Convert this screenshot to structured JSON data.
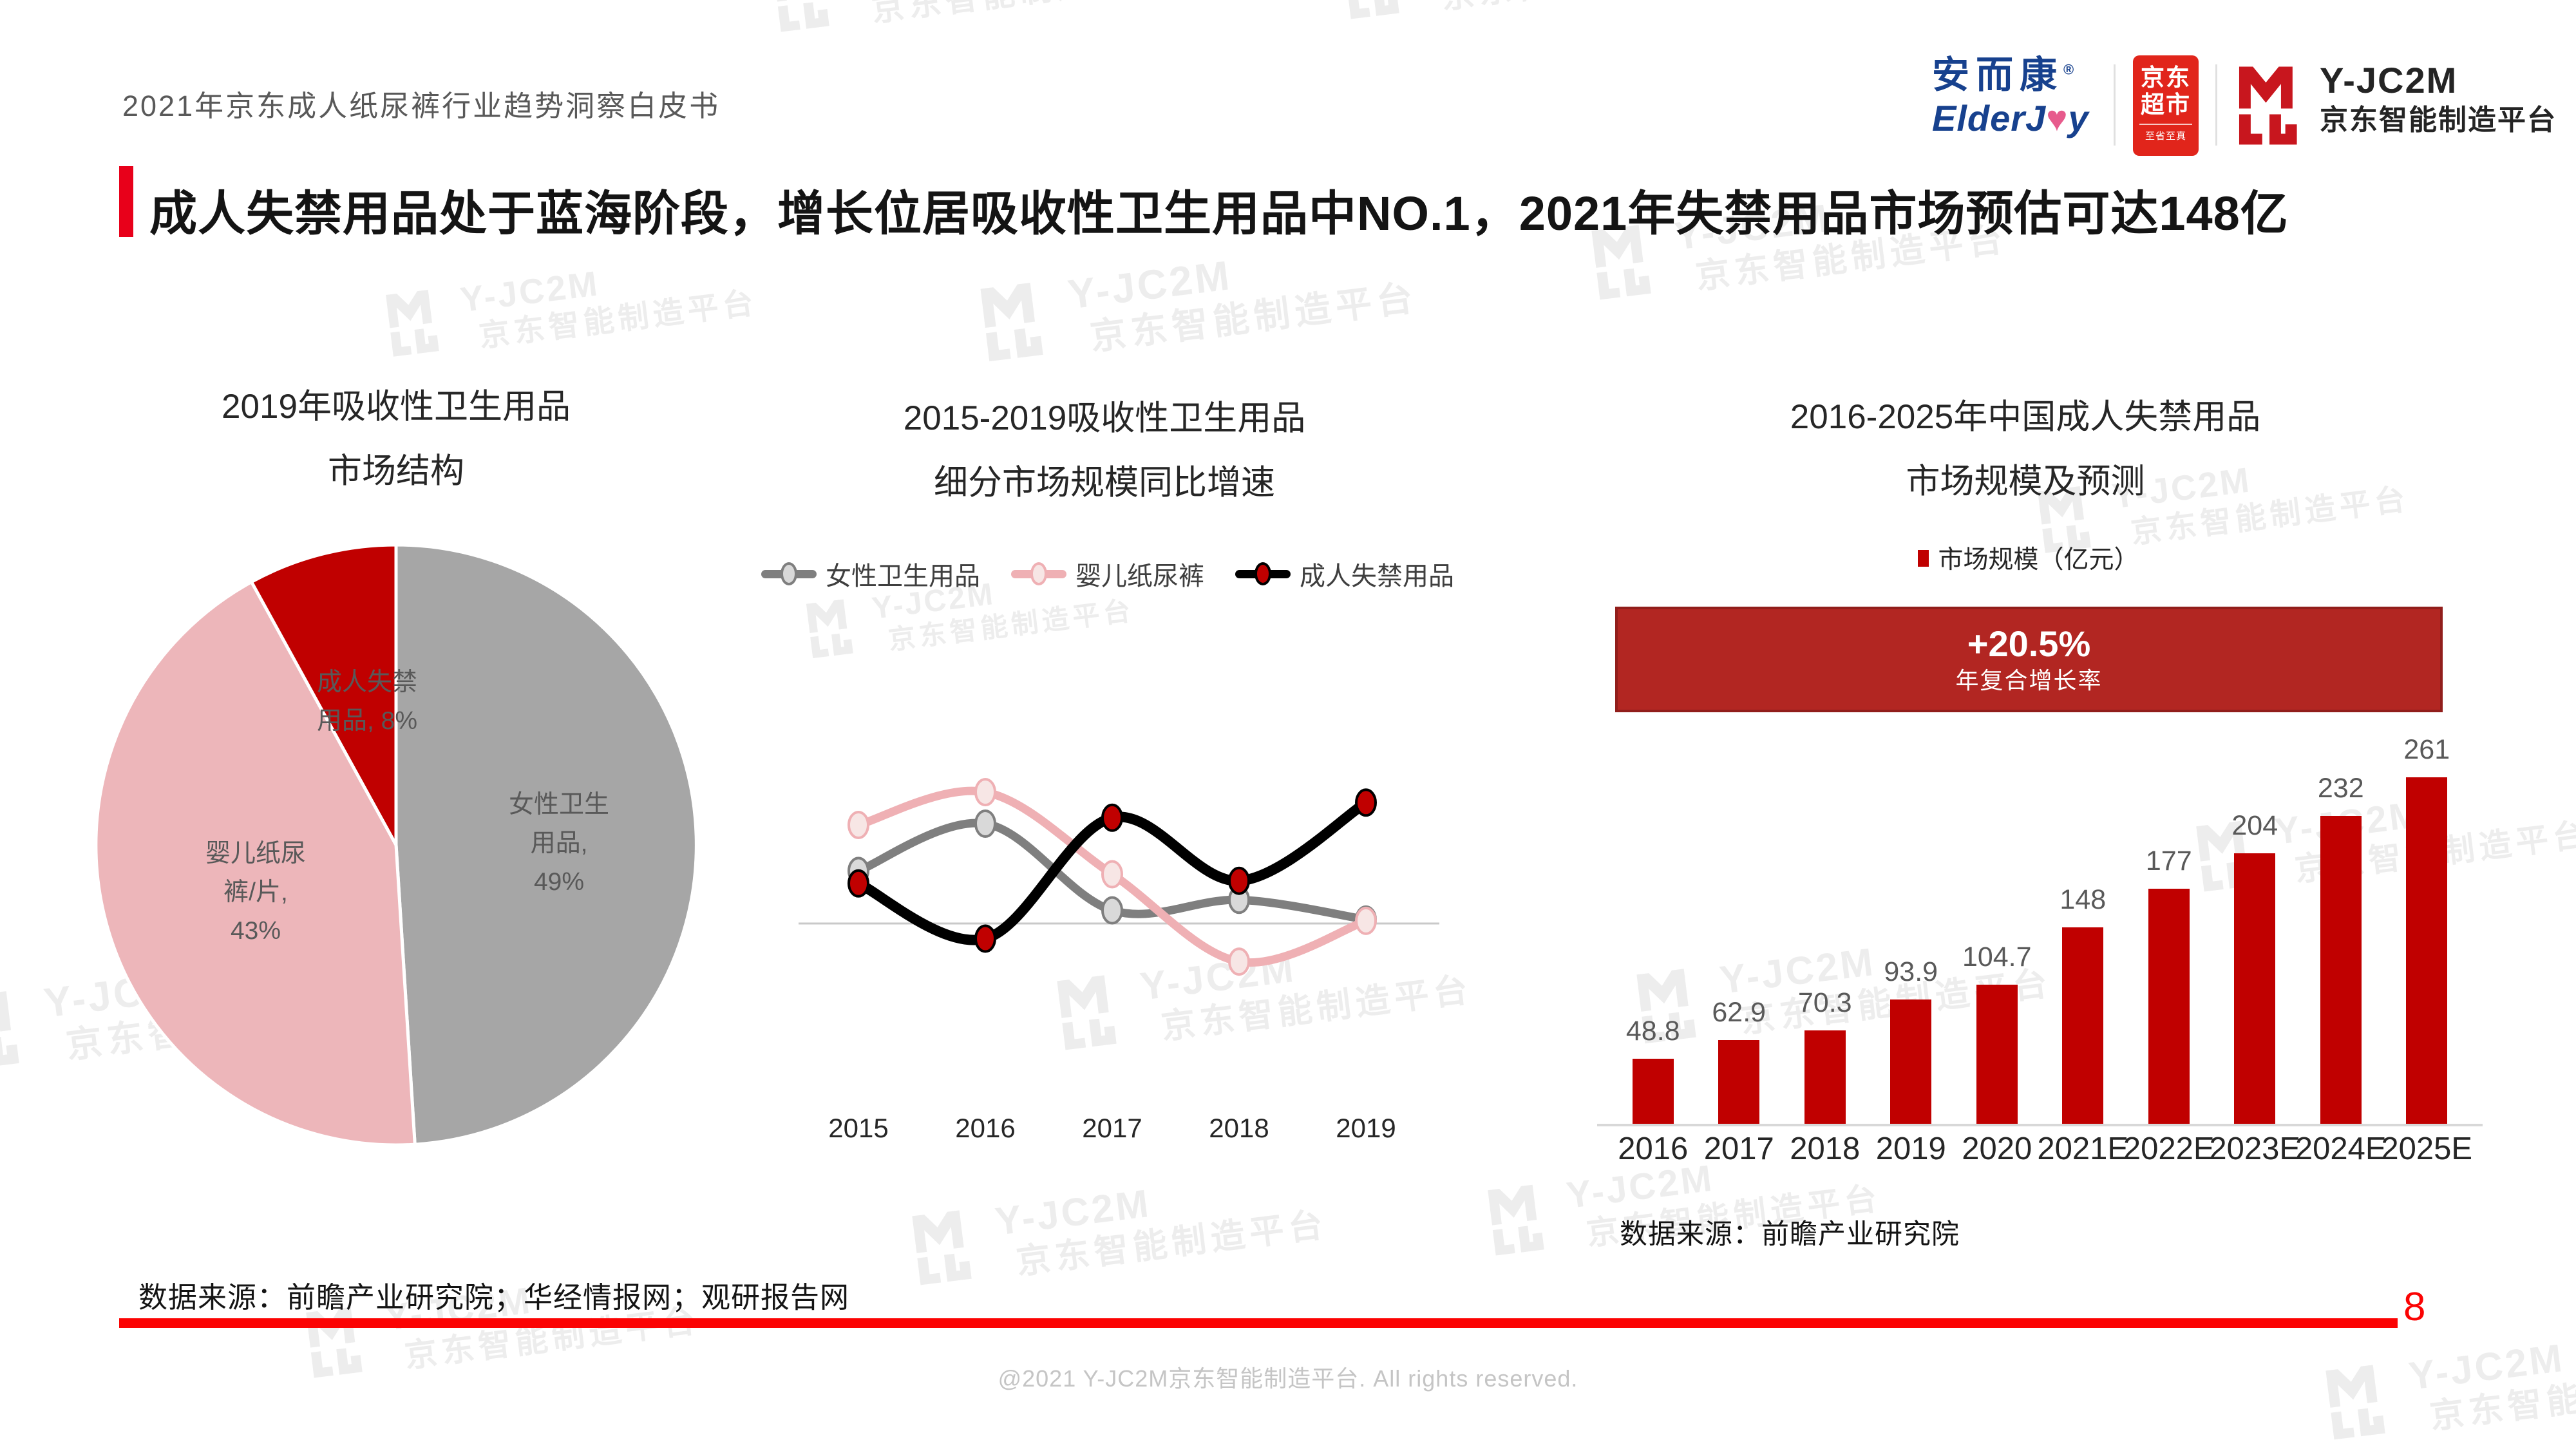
{
  "page": {
    "doc_title": "2021年京东成人纸尿裤行业趋势洞察白皮书",
    "title": "成人失禁用品处于蓝海阶段，增长位居吸收性卫生用品中NO.1，2021年失禁用品市场预估可达148亿"
  },
  "logos": {
    "elderjoy_cn": "安而康",
    "elderjoy_reg": "®",
    "elderjoy_en_left": "ElderJ",
    "elderjoy_heart": "♥",
    "elderjoy_en_right": "y",
    "jd_badge_line1": "京东",
    "jd_badge_line2": "超市",
    "jd_badge_sub": "至省至真",
    "yjc2m_name": "Y-JC2M",
    "yjc2m_sub": "京东智能制造平台"
  },
  "watermark": {
    "name": "Y-JC2M",
    "sub": "京东智能制造平台"
  },
  "chart_data": [
    {
      "type": "pie",
      "title": "2019年吸收性卫生用品市场结构",
      "title_lines": [
        "2019年吸收性卫生用品",
        "市场结构"
      ],
      "slices": [
        {
          "label": "女性卫生用品",
          "value": 49,
          "color": "#A6A6A6",
          "label_lines": [
            "女性卫生",
            "用品,",
            "49%"
          ]
        },
        {
          "label": "婴儿纸尿裤/片",
          "value": 43,
          "color": "#EDB6BA",
          "label_lines": [
            "婴儿纸尿",
            "裤/片,",
            "43%"
          ]
        },
        {
          "label": "成人失禁用品",
          "value": 8,
          "color": "#C00000",
          "label_lines": [
            "成人失禁",
            "用品, 8%"
          ]
        }
      ]
    },
    {
      "type": "line",
      "title": "2015-2019吸收性卫生用品细分市场规模同比增速",
      "title_lines": [
        "2015-2019吸收性卫生用品",
        "细分市场规模同比增速"
      ],
      "x": [
        "2015",
        "2016",
        "2017",
        "2018",
        "2019"
      ],
      "ylabel": "",
      "unit": "同比增速（坐标轴无刻度，数值为按图估算的相对值）",
      "baseline": 0,
      "grid": false,
      "legend_position": "top",
      "series": [
        {
          "name": "女性卫生用品",
          "color": "#7F7F7F",
          "marker_fill": "#D9D9D9",
          "marker_stroke": "#7F7F7F",
          "values": [
            8,
            15.2,
            2,
            3.6,
            0.6
          ]
        },
        {
          "name": "婴儿纸尿裤",
          "color": "#EFB0B4",
          "marker_fill": "#F7E6E5",
          "marker_stroke": "#EFB0B4",
          "values": [
            15,
            20,
            7.5,
            -5.8,
            0.4
          ]
        },
        {
          "name": "成人失禁用品",
          "color": "#000000",
          "marker_fill": "#C00000",
          "marker_stroke": "#000000",
          "values": [
            6.1,
            -2.3,
            16.1,
            6.5,
            18.4
          ]
        }
      ]
    },
    {
      "type": "bar",
      "title": "2016-2025年中国成人失禁用品市场规模及预测",
      "title_lines": [
        "2016-2025年中国成人失禁用品",
        "市场规模及预测"
      ],
      "legend": "市场规模（亿元）",
      "categories": [
        "2016",
        "2017",
        "2018",
        "2019",
        "2020",
        "2021E",
        "2022E",
        "2023E",
        "2024E",
        "2025E"
      ],
      "values": [
        48.8,
        62.9,
        70.3,
        93.9,
        104.7,
        148,
        177,
        204,
        232,
        261
      ],
      "bar_color": "#C00000",
      "ylim": [
        0,
        280
      ],
      "banner": {
        "rate": "+20.5%",
        "label": "年复合增长率"
      },
      "source": "数据来源：前瞻产业研究院"
    }
  ],
  "sources": {
    "bottom_left": "数据来源：前瞻产业研究院；华经情报网；观研报告网"
  },
  "footer": {
    "copyright": "@2021 Y-JC2M京东智能制造平台. All rights reserved.",
    "page_number": "8"
  }
}
